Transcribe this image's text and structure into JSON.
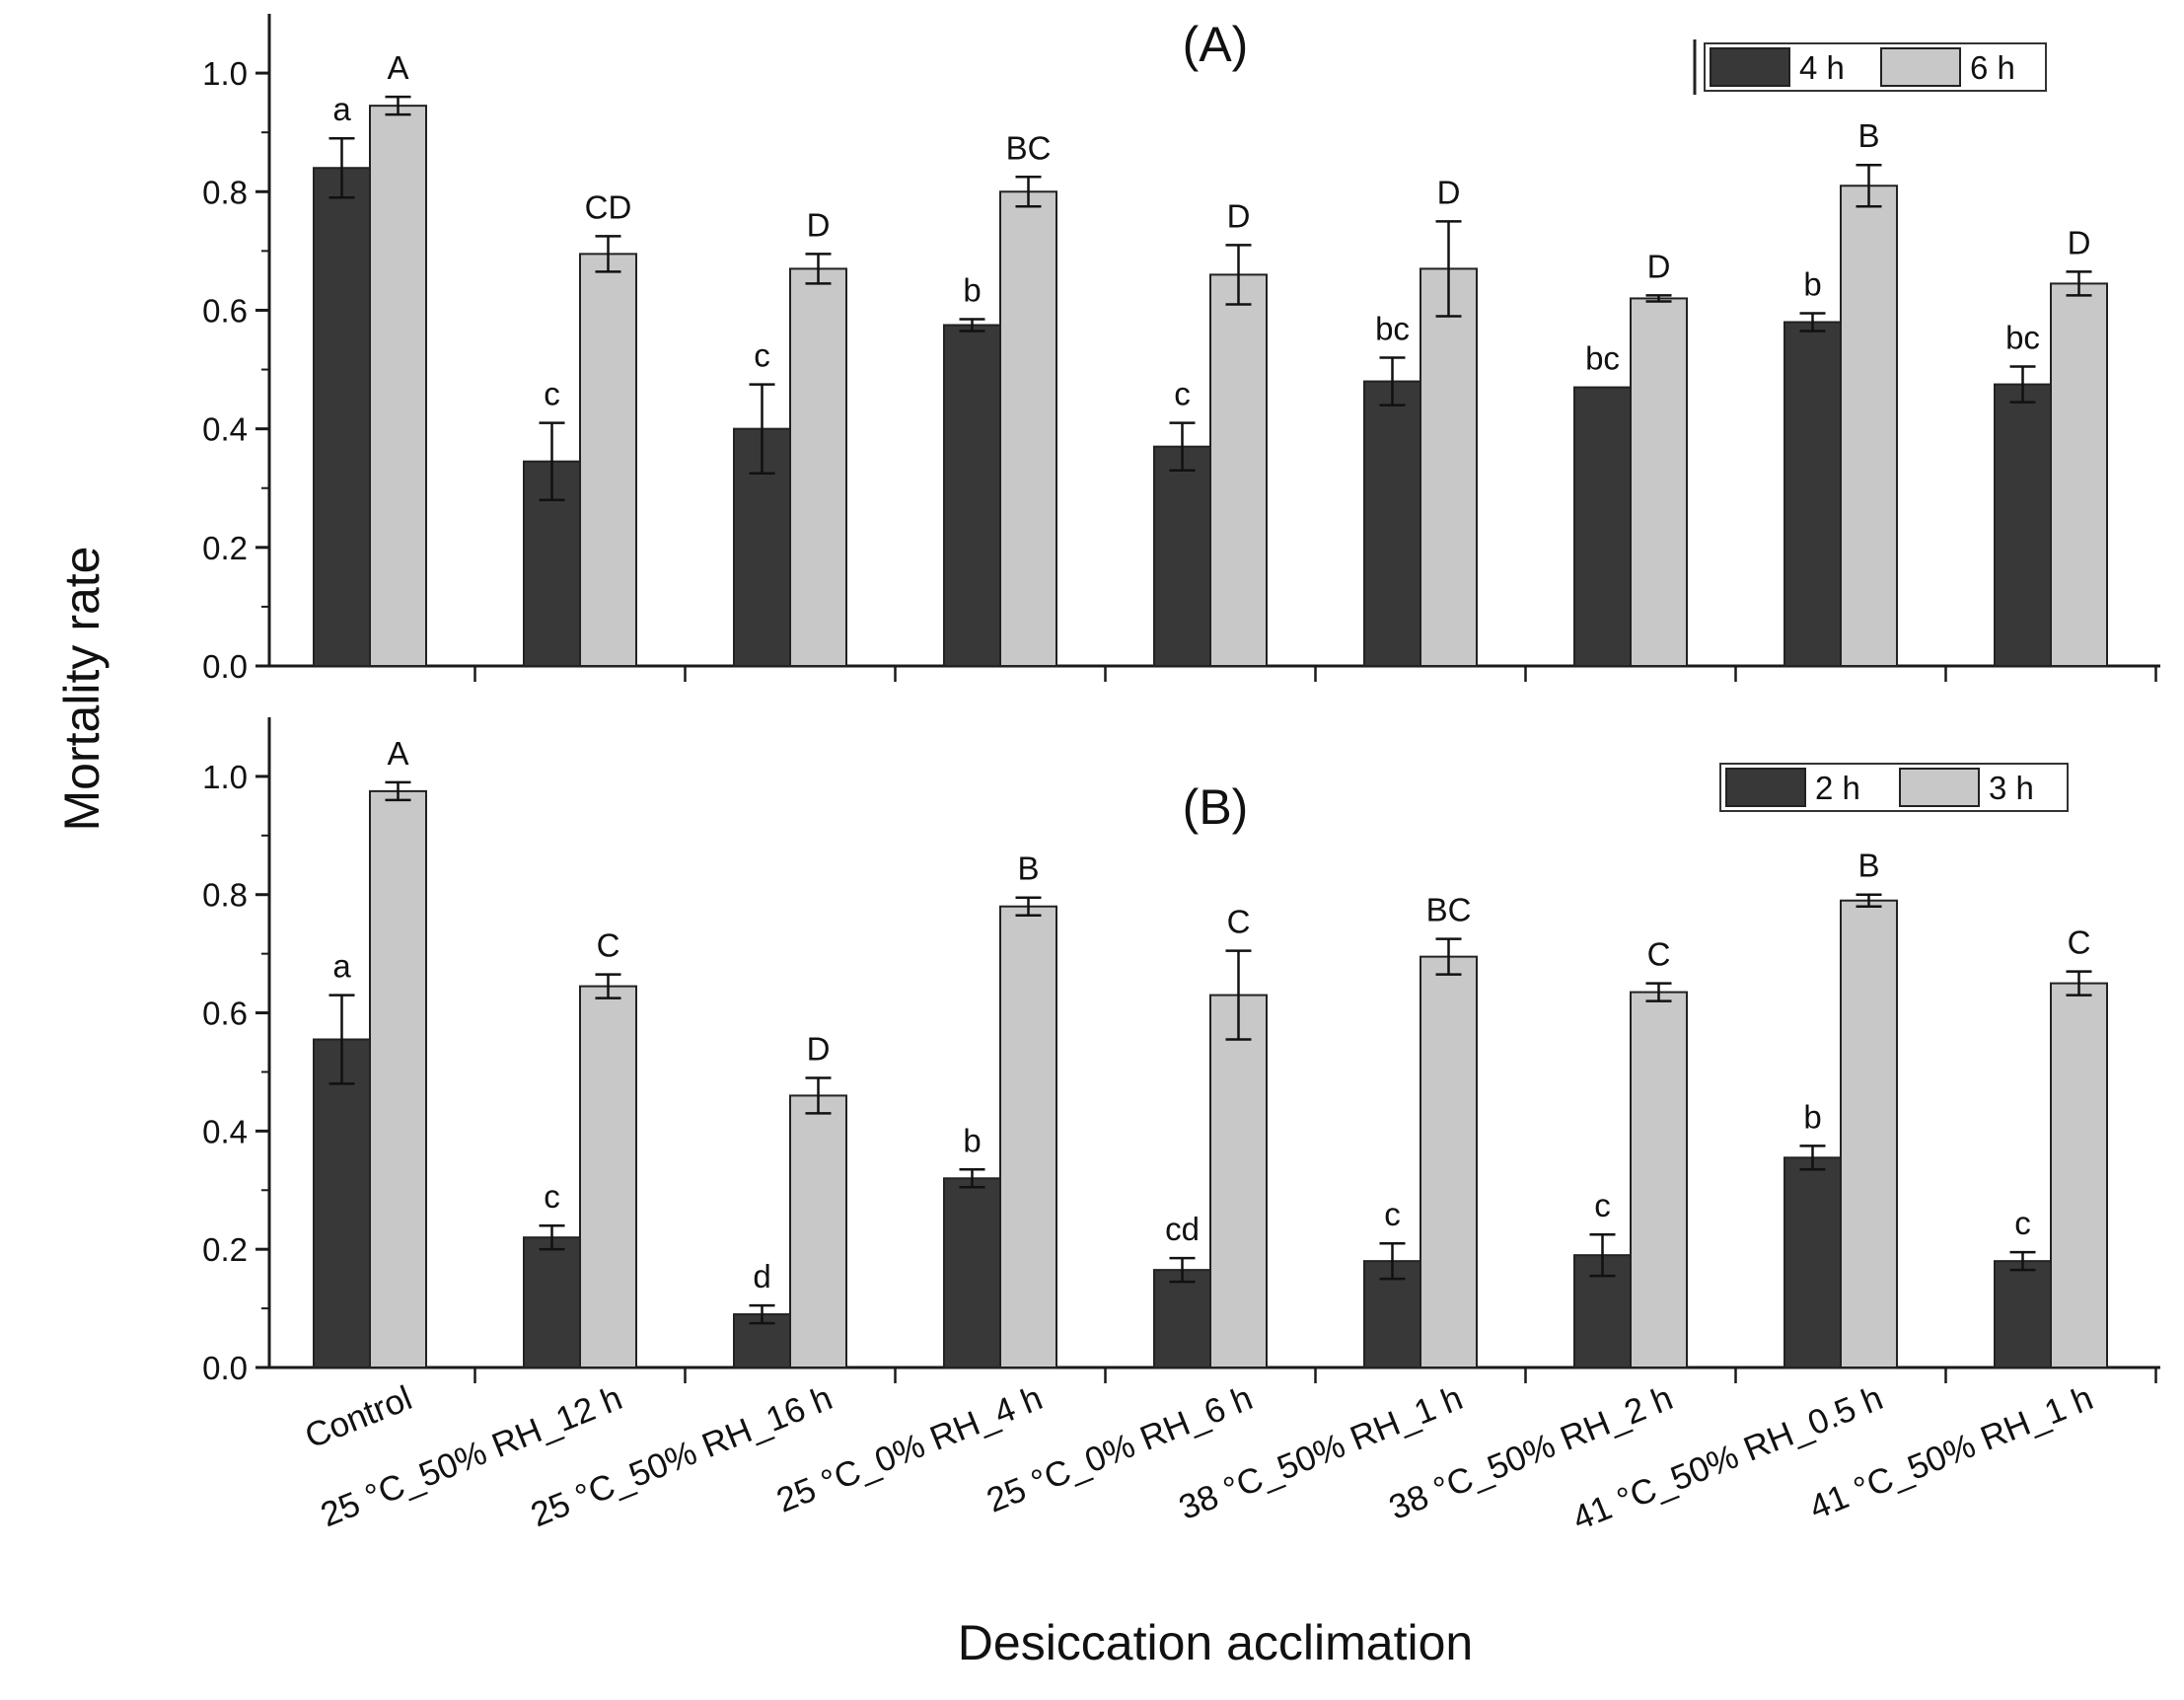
{
  "figure": {
    "ylabel": "Mortality rate",
    "xlabel": "Desiccation acclimation",
    "colors": {
      "dark": "#383838",
      "light": "#c8c8c8",
      "axis": "#1a1a1a"
    }
  },
  "chart_data": [
    {
      "type": "bar",
      "title": "(A)",
      "categories": [
        "Control",
        "25 °C_50% RH_12 h",
        "25 °C_50% RH_16 h",
        "25 °C_0% RH_4 h",
        "25 °C_0% RH_6 h",
        "38 °C_50% RH_1 h",
        "38 °C_50% RH_2 h",
        "41 °C_50% RH_0.5 h",
        "41 °C_50% RH_1 h"
      ],
      "ylim": [
        0,
        1.1
      ],
      "yticks": [
        "0.0",
        "0.2",
        "0.4",
        "0.6",
        "0.8",
        "1.0"
      ],
      "legend_position": "top-right",
      "series": [
        {
          "name": "4 h",
          "values": [
            0.84,
            0.345,
            0.4,
            0.575,
            0.37,
            0.48,
            0.47,
            0.58,
            0.475
          ],
          "errors": [
            0.05,
            0.065,
            0.075,
            0.01,
            0.04,
            0.04,
            0.0,
            0.015,
            0.03
          ],
          "letters": [
            "a",
            "c",
            "c",
            "b",
            "c",
            "bc",
            "bc",
            "b",
            "bc"
          ]
        },
        {
          "name": "6 h",
          "values": [
            0.945,
            0.695,
            0.67,
            0.8,
            0.66,
            0.67,
            0.62,
            0.81,
            0.645
          ],
          "errors": [
            0.015,
            0.03,
            0.025,
            0.025,
            0.05,
            0.08,
            0.005,
            0.035,
            0.02
          ],
          "letters": [
            "A",
            "CD",
            "D",
            "BC",
            "D",
            "D",
            "D",
            "B",
            "D"
          ]
        }
      ]
    },
    {
      "type": "bar",
      "title": "(B)",
      "categories": [
        "Control",
        "25 °C_50% RH_12 h",
        "25 °C_50% RH_16 h",
        "25 °C_0% RH_4 h",
        "25 °C_0% RH_6 h",
        "38 °C_50% RH_1 h",
        "38 °C_50% RH_2 h",
        "41 °C_50% RH_0.5 h",
        "41 °C_50% RH_1 h"
      ],
      "ylim": [
        0,
        1.1
      ],
      "yticks": [
        "0.0",
        "0.2",
        "0.4",
        "0.6",
        "0.8",
        "1.0"
      ],
      "legend_position": "top-right",
      "series": [
        {
          "name": "2 h",
          "values": [
            0.555,
            0.22,
            0.09,
            0.32,
            0.165,
            0.18,
            0.19,
            0.355,
            0.18
          ],
          "errors": [
            0.075,
            0.02,
            0.015,
            0.015,
            0.02,
            0.03,
            0.035,
            0.02,
            0.015
          ],
          "letters": [
            "a",
            "c",
            "d",
            "b",
            "cd",
            "c",
            "c",
            "b",
            "c"
          ]
        },
        {
          "name": "3 h",
          "values": [
            0.975,
            0.645,
            0.46,
            0.78,
            0.63,
            0.695,
            0.635,
            0.79,
            0.65
          ],
          "errors": [
            0.015,
            0.02,
            0.03,
            0.015,
            0.075,
            0.03,
            0.015,
            0.01,
            0.02
          ],
          "letters": [
            "A",
            "C",
            "D",
            "B",
            "C",
            "BC",
            "C",
            "B",
            "C"
          ]
        }
      ]
    }
  ]
}
